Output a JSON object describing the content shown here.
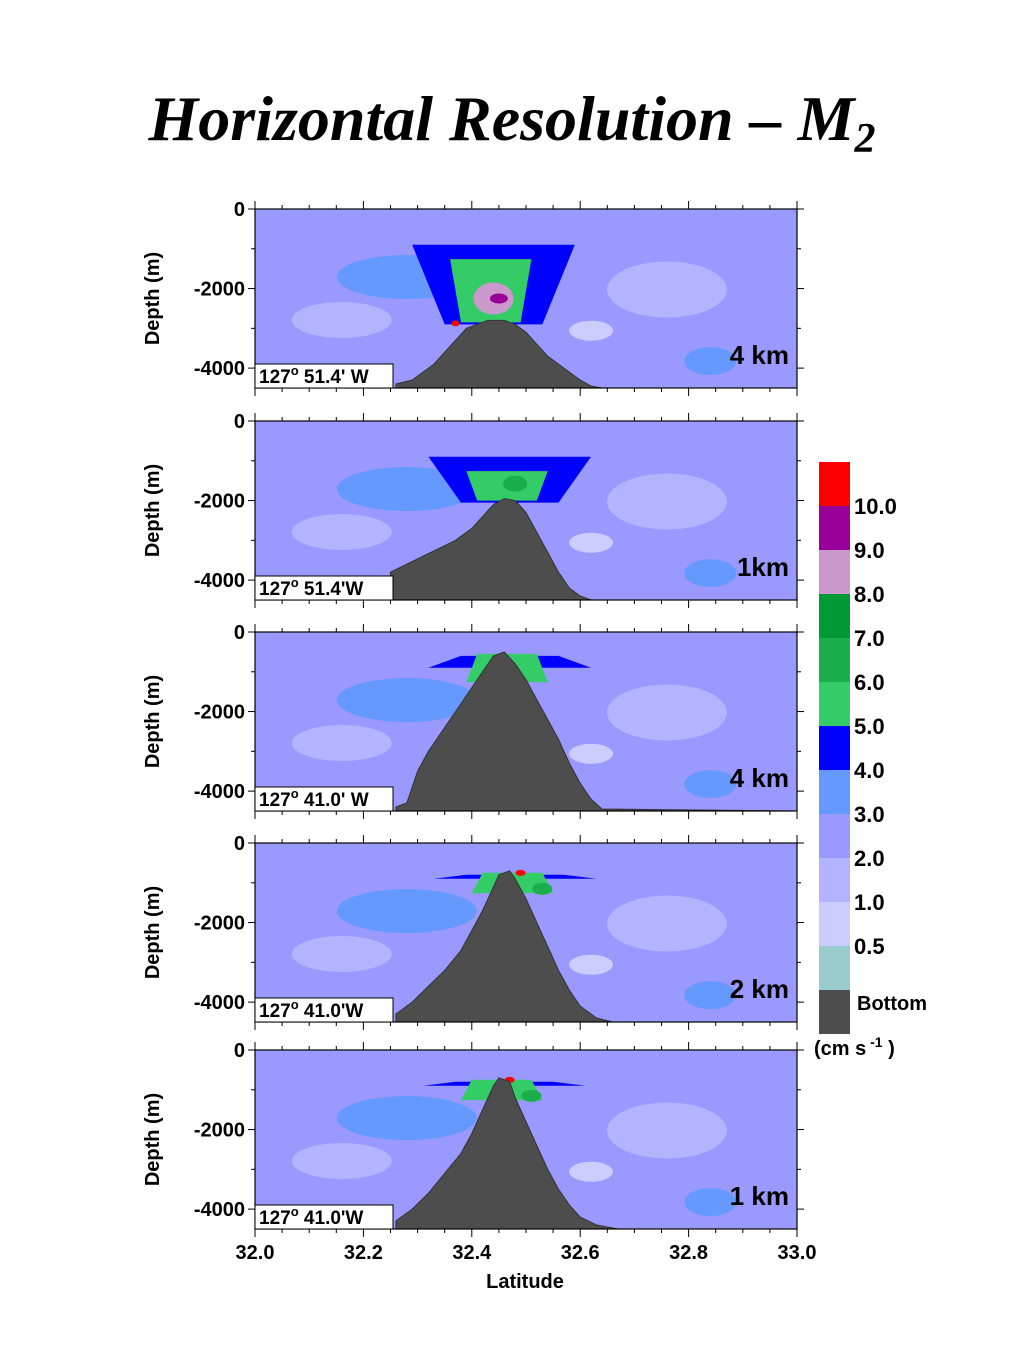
{
  "title_main": "Horizontal Resolution – M",
  "title_sub": "2",
  "xlabel": "Latitude",
  "colorbar": {
    "unit_prefix": "(cm s",
    "unit_exp": "-1",
    "unit_suffix": " )",
    "bottom_label": "Bottom",
    "levels": [
      {
        "label": "10.0",
        "color": "#ff0000"
      },
      {
        "label": "9.0",
        "color": "#990099"
      },
      {
        "label": "8.0",
        "color": "#cc99cc"
      },
      {
        "label": "7.0",
        "color": "#009933"
      },
      {
        "label": "6.0",
        "color": "#1aaf4a"
      },
      {
        "label": "5.0",
        "color": "#33cc66"
      },
      {
        "label": "4.0",
        "color": "#0000ff"
      },
      {
        "label": "3.0",
        "color": "#6699ff"
      },
      {
        "label": "2.0",
        "color": "#9999ff"
      },
      {
        "label": "1.0",
        "color": "#b3b3ff"
      },
      {
        "label": "0.5",
        "color": "#ccccff"
      },
      {
        "label": "",
        "color": "#99cccc"
      }
    ],
    "bottom_color": "#4d4d4d"
  },
  "chart_data": [
    {
      "type": "heatmap",
      "title": "",
      "ylabel": "Depth (m)",
      "xlabel": "",
      "xlim": [
        32.0,
        33.0
      ],
      "ylim": [
        -4500,
        0
      ],
      "yticks": [
        "0",
        "-2000",
        "-4000"
      ],
      "resolution": "4 km",
      "location_deg": "127",
      "location_deg_sup": "o",
      "location_min": " 51.4' W",
      "bathymetry": {
        "x": [
          32.26,
          32.29,
          32.31,
          32.33,
          32.35,
          32.37,
          32.39,
          32.41,
          32.43,
          32.46,
          32.48,
          32.5,
          32.52,
          32.54,
          32.56,
          32.58,
          32.6,
          32.62,
          32.64,
          33.0
        ],
        "y": [
          -4400,
          -4300,
          -4100,
          -3900,
          -3600,
          -3300,
          -3000,
          -2900,
          -2800,
          -2800,
          -2900,
          -3100,
          -3400,
          -3700,
          -3900,
          -4100,
          -4300,
          -4450,
          -4500,
          -4500
        ]
      }
    },
    {
      "type": "heatmap",
      "title": "",
      "ylabel": "Depth (m)",
      "xlabel": "",
      "xlim": [
        32.0,
        33.0
      ],
      "ylim": [
        -4500,
        0
      ],
      "yticks": [
        "0",
        "-2000",
        "-4000"
      ],
      "resolution": "1km",
      "location_deg": "127",
      "location_deg_sup": "o",
      "location_min": " 51.4'W",
      "bathymetry": {
        "x": [
          32.25,
          32.28,
          32.31,
          32.34,
          32.37,
          32.4,
          32.42,
          32.44,
          32.46,
          32.48,
          32.5,
          32.52,
          32.54,
          32.56,
          32.58,
          32.6,
          32.62,
          33.0
        ],
        "y": [
          -3800,
          -3600,
          -3400,
          -3200,
          -3000,
          -2700,
          -2400,
          -2100,
          -1950,
          -2000,
          -2300,
          -2800,
          -3300,
          -3800,
          -4200,
          -4400,
          -4500,
          -4500
        ]
      }
    },
    {
      "type": "heatmap",
      "title": "",
      "ylabel": "Depth (m)",
      "xlabel": "",
      "xlim": [
        32.0,
        33.0
      ],
      "ylim": [
        -4500,
        0
      ],
      "yticks": [
        "0",
        "-2000",
        "-4000"
      ],
      "resolution": "4 km",
      "location_deg": "127",
      "location_deg_sup": "o",
      "location_min": " 41.0' W",
      "bathymetry": {
        "x": [
          32.26,
          32.28,
          32.3,
          32.32,
          32.34,
          32.36,
          32.38,
          32.4,
          32.42,
          32.44,
          32.46,
          32.48,
          32.5,
          32.52,
          32.54,
          32.56,
          32.58,
          32.6,
          32.62,
          32.64,
          33.0
        ],
        "y": [
          -4400,
          -4300,
          -3500,
          -3000,
          -2600,
          -2200,
          -1800,
          -1400,
          -1000,
          -600,
          -500,
          -800,
          -1200,
          -1700,
          -2200,
          -2700,
          -3300,
          -3800,
          -4200,
          -4450,
          -4500
        ]
      }
    },
    {
      "type": "heatmap",
      "title": "",
      "ylabel": "Depth (m)",
      "xlabel": "",
      "xlim": [
        32.0,
        33.0
      ],
      "ylim": [
        -4500,
        0
      ],
      "yticks": [
        "0",
        "-2000",
        "-4000"
      ],
      "resolution": "2 km",
      "location_deg": "127",
      "location_deg_sup": "o",
      "location_min": " 41.0'W",
      "bathymetry": {
        "x": [
          32.26,
          32.29,
          32.32,
          32.35,
          32.38,
          32.4,
          32.42,
          32.44,
          32.45,
          32.47,
          32.48,
          32.5,
          32.52,
          32.54,
          32.56,
          32.58,
          32.6,
          32.63,
          32.66,
          33.0
        ],
        "y": [
          -4300,
          -4000,
          -3600,
          -3200,
          -2700,
          -2200,
          -1700,
          -1100,
          -800,
          -700,
          -900,
          -1400,
          -2000,
          -2600,
          -3200,
          -3700,
          -4100,
          -4400,
          -4500,
          -4500
        ]
      }
    },
    {
      "type": "heatmap",
      "title": "",
      "ylabel": "Depth (m)",
      "xlabel": "Latitude",
      "xlim": [
        32.0,
        33.0
      ],
      "ylim": [
        -4500,
        0
      ],
      "yticks": [
        "0",
        "-2000",
        "-4000"
      ],
      "xticks": [
        "32.0",
        "32.2",
        "32.4",
        "32.6",
        "32.8",
        "33.0"
      ],
      "resolution": "1 km",
      "location_deg": "127",
      "location_deg_sup": "o",
      "location_min": " 41.0'W",
      "bathymetry": {
        "x": [
          32.26,
          32.29,
          32.32,
          32.35,
          32.38,
          32.4,
          32.42,
          32.44,
          32.45,
          32.47,
          32.48,
          32.5,
          32.52,
          32.54,
          32.56,
          32.58,
          32.6,
          32.63,
          32.67,
          33.0
        ],
        "y": [
          -4300,
          -4000,
          -3600,
          -3100,
          -2600,
          -2100,
          -1500,
          -900,
          -700,
          -800,
          -1200,
          -1800,
          -2400,
          -3000,
          -3500,
          -3900,
          -4200,
          -4400,
          -4500,
          -4500
        ]
      }
    }
  ]
}
